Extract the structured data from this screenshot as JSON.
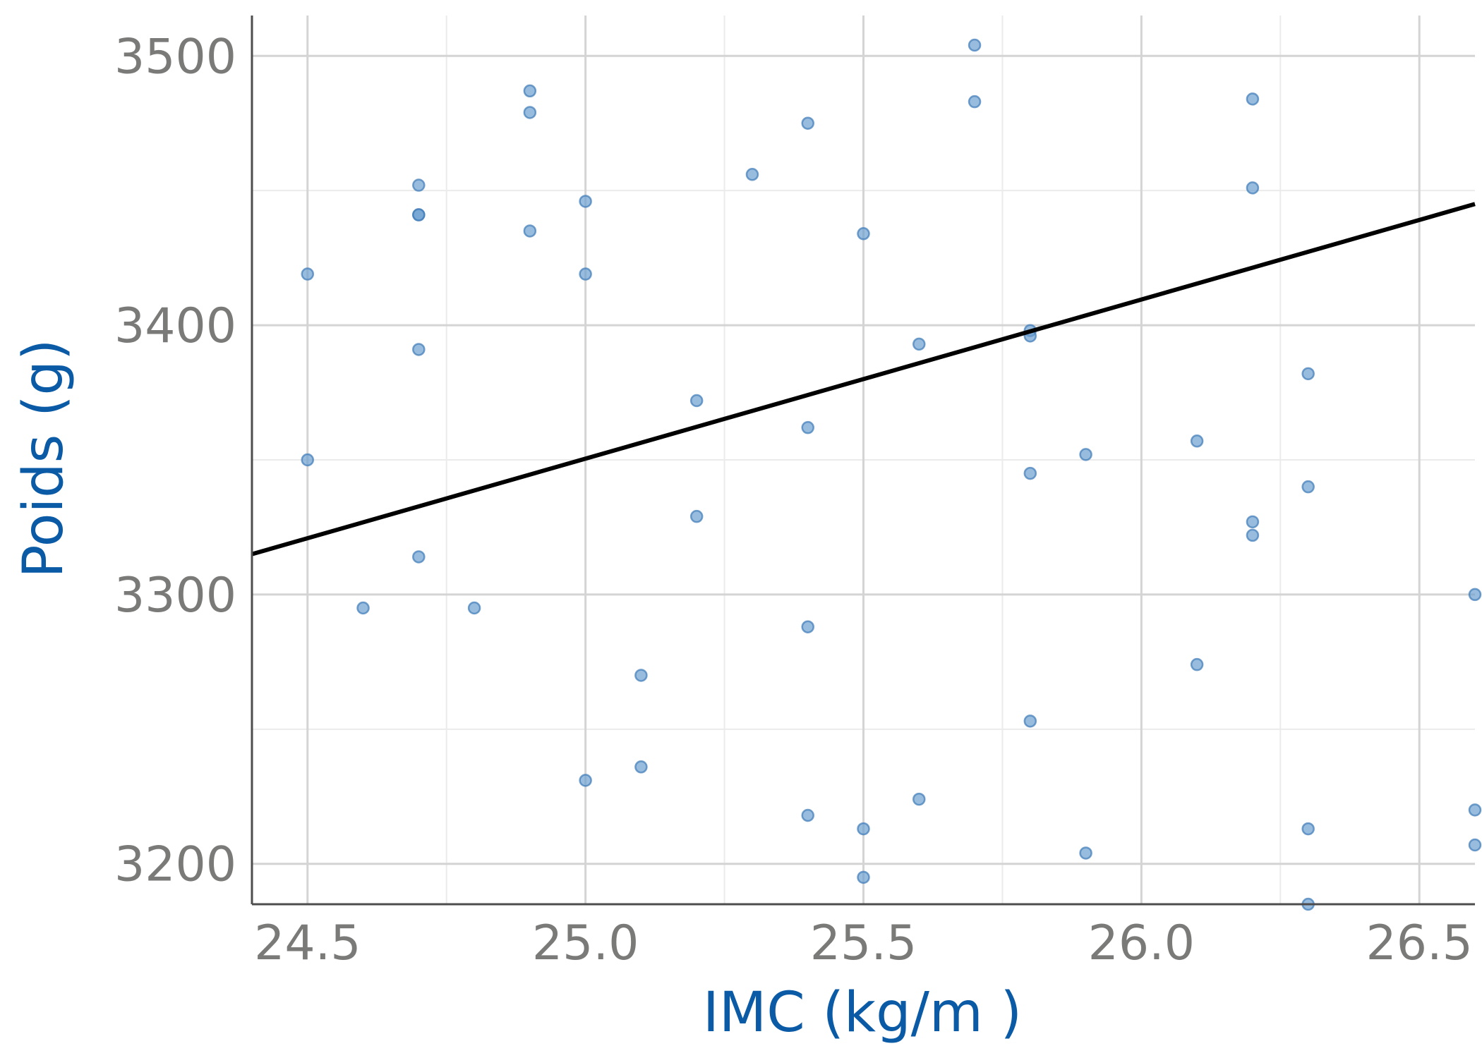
{
  "chart_data": {
    "type": "scatter",
    "xlabel": "IMC (kg/m )",
    "ylabel": "Poids (g)",
    "xlim": [
      24.4,
      26.6
    ],
    "ylim": [
      3185,
      3515
    ],
    "x_ticks": [
      "24.5",
      "25.0",
      "25.5",
      "26.0",
      "26.5"
    ],
    "y_ticks": [
      "3200",
      "3300",
      "3400",
      "3500"
    ],
    "x_tick_values": [
      24.5,
      25.0,
      25.5,
      26.0,
      26.5
    ],
    "y_tick_values": [
      3200,
      3300,
      3400,
      3500
    ],
    "grid": true,
    "colors": {
      "points": "#6c9fd0",
      "point_stroke": "#3d7ab8",
      "fit_line": "#000000",
      "axis_title": "#0a5aa6",
      "tick_label": "#7a7a78"
    },
    "fit_line": {
      "x": [
        24.4,
        26.6
      ],
      "y": [
        3315,
        3445
      ]
    },
    "points": [
      {
        "x": 24.5,
        "y": 3419
      },
      {
        "x": 24.5,
        "y": 3350
      },
      {
        "x": 24.6,
        "y": 3295
      },
      {
        "x": 24.7,
        "y": 3452
      },
      {
        "x": 24.7,
        "y": 3441
      },
      {
        "x": 24.7,
        "y": 3441
      },
      {
        "x": 24.7,
        "y": 3391
      },
      {
        "x": 24.7,
        "y": 3314
      },
      {
        "x": 24.8,
        "y": 3295
      },
      {
        "x": 24.9,
        "y": 3487
      },
      {
        "x": 24.9,
        "y": 3479
      },
      {
        "x": 24.9,
        "y": 3435
      },
      {
        "x": 25.0,
        "y": 3446
      },
      {
        "x": 25.0,
        "y": 3419
      },
      {
        "x": 25.0,
        "y": 3231
      },
      {
        "x": 25.1,
        "y": 3270
      },
      {
        "x": 25.1,
        "y": 3236
      },
      {
        "x": 25.2,
        "y": 3372
      },
      {
        "x": 25.2,
        "y": 3329
      },
      {
        "x": 25.3,
        "y": 3456
      },
      {
        "x": 25.4,
        "y": 3475
      },
      {
        "x": 25.4,
        "y": 3362
      },
      {
        "x": 25.4,
        "y": 3288
      },
      {
        "x": 25.4,
        "y": 3218
      },
      {
        "x": 25.5,
        "y": 3434
      },
      {
        "x": 25.5,
        "y": 3213
      },
      {
        "x": 25.5,
        "y": 3195
      },
      {
        "x": 25.6,
        "y": 3393
      },
      {
        "x": 25.6,
        "y": 3224
      },
      {
        "x": 25.7,
        "y": 3504
      },
      {
        "x": 25.7,
        "y": 3483
      },
      {
        "x": 25.8,
        "y": 3398
      },
      {
        "x": 25.8,
        "y": 3396
      },
      {
        "x": 25.8,
        "y": 3345
      },
      {
        "x": 25.8,
        "y": 3253
      },
      {
        "x": 25.9,
        "y": 3352
      },
      {
        "x": 25.9,
        "y": 3204
      },
      {
        "x": 26.1,
        "y": 3357
      },
      {
        "x": 26.1,
        "y": 3274
      },
      {
        "x": 26.2,
        "y": 3484
      },
      {
        "x": 26.2,
        "y": 3451
      },
      {
        "x": 26.2,
        "y": 3327
      },
      {
        "x": 26.2,
        "y": 3322
      },
      {
        "x": 26.3,
        "y": 3382
      },
      {
        "x": 26.3,
        "y": 3340
      },
      {
        "x": 26.3,
        "y": 3213
      },
      {
        "x": 26.3,
        "y": 3185
      },
      {
        "x": 26.6,
        "y": 3300
      },
      {
        "x": 26.6,
        "y": 3220
      },
      {
        "x": 26.6,
        "y": 3207
      }
    ]
  }
}
